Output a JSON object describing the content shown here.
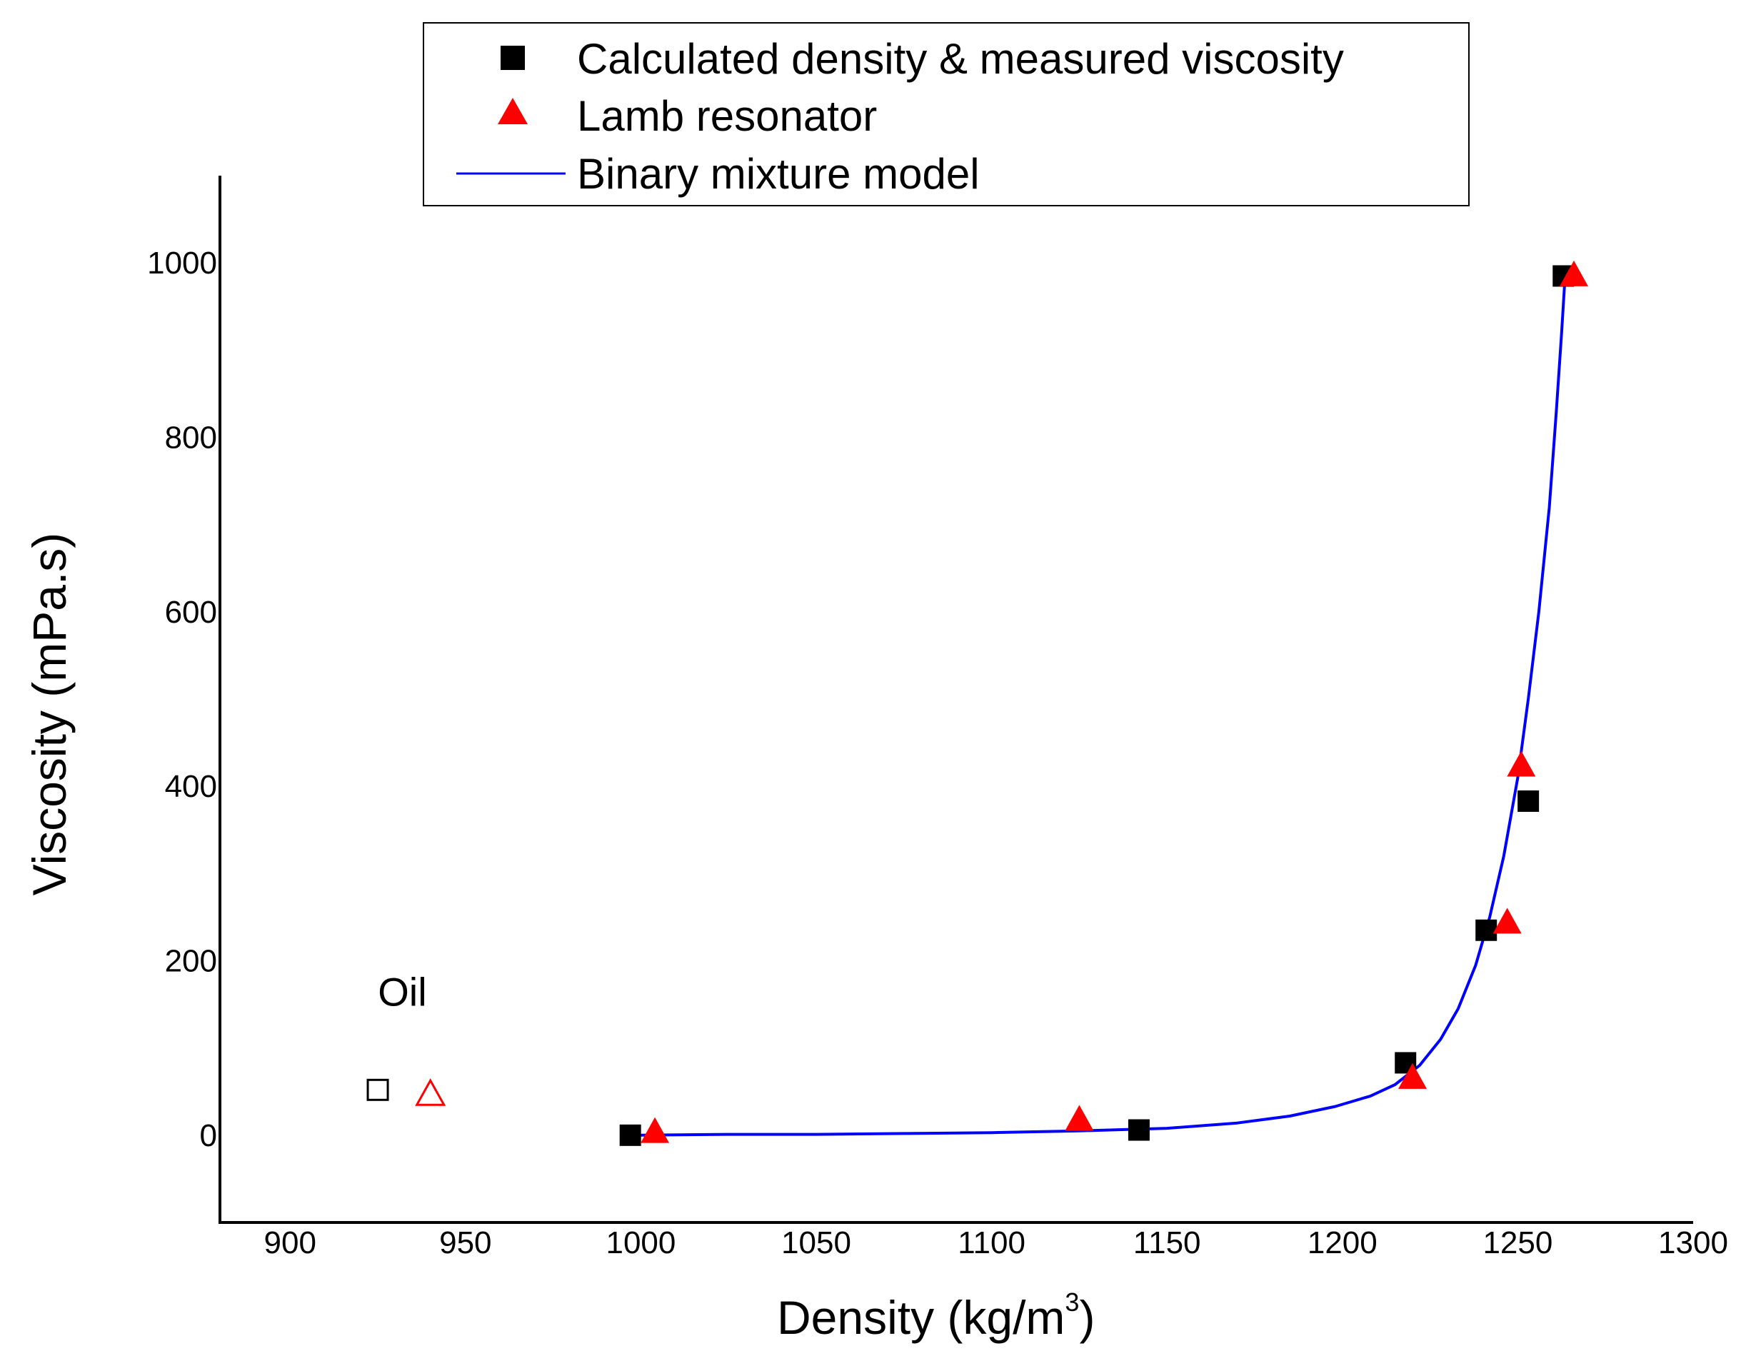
{
  "chart_data": {
    "type": "scatter",
    "xlabel": "Density (kg/m",
    "xlabel_superscript": "3",
    "xlabel_suffix": ")",
    "ylabel": "Viscosity (mPa.s)",
    "xlim": [
      880,
      1300
    ],
    "ylim": [
      -100,
      1100
    ],
    "x_ticks": [
      900,
      950,
      1000,
      1050,
      1100,
      1150,
      1200,
      1250,
      1300
    ],
    "y_ticks": [
      0,
      200,
      400,
      600,
      800,
      1000
    ],
    "x_tick_labels": [
      "900",
      "950",
      "1000",
      "1050",
      "1100",
      "1150",
      "1200",
      "1250",
      "1300"
    ],
    "y_tick_labels": [
      "0",
      "200",
      "400",
      "600",
      "800",
      "1000"
    ],
    "grid": false,
    "legend_position": "top",
    "series": [
      {
        "name": "Calculated density & measured viscosity",
        "marker": "square",
        "color": "#000000",
        "x": [
          997,
          1142,
          1218,
          1241,
          1253,
          1263
        ],
        "y": [
          0,
          6,
          83,
          235,
          383,
          985
        ]
      },
      {
        "name": "Lamb resonator",
        "marker": "triangle",
        "color": "#ff0000",
        "x": [
          1004,
          1125,
          1220,
          1247,
          1251,
          1266
        ],
        "y": [
          3,
          17,
          65,
          243,
          423,
          985
        ]
      },
      {
        "name": "Binary mixture model",
        "marker": "line",
        "color": "#0000ff",
        "x": [
          1000,
          1025,
          1050,
          1075,
          1100,
          1125,
          1150,
          1170,
          1185,
          1198,
          1208,
          1215,
          1222,
          1228,
          1233,
          1238,
          1242,
          1246,
          1250,
          1253,
          1256,
          1259,
          1261,
          1262.5,
          1263.5
        ],
        "y": [
          0,
          1,
          1,
          2,
          3,
          5,
          8,
          14,
          22,
          33,
          45,
          58,
          80,
          110,
          145,
          195,
          250,
          320,
          410,
          500,
          600,
          720,
          830,
          920,
          985
        ]
      }
    ],
    "annotations": [
      {
        "text": "Oil",
        "x": 932,
        "y": 165
      }
    ],
    "oil_points": [
      {
        "marker": "square-open",
        "color": "#000000",
        "x": 925,
        "y": 52
      },
      {
        "marker": "triangle-open",
        "color": "#ff0000",
        "x": 940,
        "y": 46
      }
    ]
  }
}
